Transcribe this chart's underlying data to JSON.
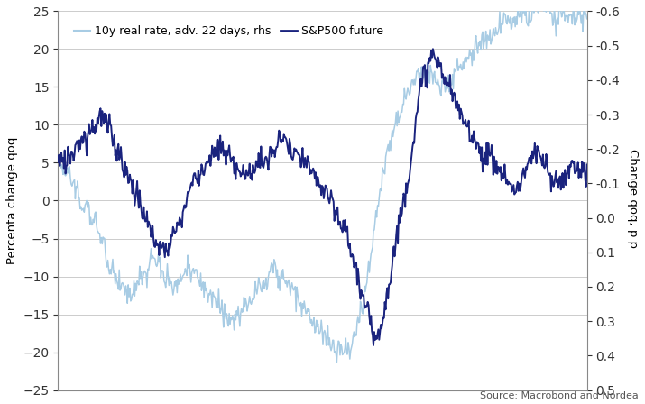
{
  "ylabel_left": "Percenta change qoq",
  "ylabel_right": "Change qoq, p.p.",
  "source": "Source: Macrobond and Nordea",
  "legend": [
    "10y real rate, adv. 22 days, rhs",
    "S&P500 future"
  ],
  "ylim_left": [
    -25,
    25
  ],
  "ylim_right": [
    0.5,
    -0.6
  ],
  "color_light": "#a8cce4",
  "color_dark": "#1a237e",
  "background": "#ffffff",
  "grid_color": "#cccccc",
  "n_points": 650,
  "sp500_waypoints": [
    5,
    5,
    6,
    7,
    8,
    9,
    10,
    11,
    10,
    9,
    7,
    5,
    3,
    1,
    -1,
    -3,
    -5,
    -6,
    -7,
    -4,
    -2,
    0,
    2,
    3,
    4,
    5,
    6,
    7,
    7,
    6,
    5,
    4,
    3,
    4,
    5,
    5,
    6,
    7,
    8,
    7,
    6,
    5,
    4,
    3,
    2,
    1,
    0,
    -1,
    -3,
    -5,
    -8,
    -11,
    -14,
    -17,
    -16,
    -14,
    -10,
    -5,
    0,
    5,
    10,
    15,
    18,
    20,
    19,
    17,
    15,
    13,
    11,
    10,
    9,
    8,
    7,
    6,
    5,
    4,
    3,
    2,
    3,
    4,
    5,
    4,
    3,
    2,
    1,
    2,
    3,
    4,
    4,
    3
  ],
  "real_rate_waypoints": [
    5,
    4,
    3,
    1,
    0,
    -1,
    -3,
    -5,
    -7,
    -9,
    -10,
    -11,
    -12,
    -11,
    -10,
    -9,
    -8,
    -9,
    -10,
    -11,
    -11,
    -10,
    -9,
    -10,
    -11,
    -12,
    -13,
    -14,
    -15,
    -16,
    -15,
    -14,
    -13,
    -12,
    -11,
    -10,
    -9,
    -10,
    -11,
    -12,
    -13,
    -14,
    -15,
    -16,
    -17,
    -18,
    -19,
    -20,
    -20,
    -19,
    -17,
    -14,
    -10,
    -5,
    0,
    5,
    8,
    11,
    13,
    15,
    16,
    17,
    18,
    17,
    16,
    15,
    16,
    17,
    18,
    19,
    20,
    21,
    22,
    23,
    23,
    24,
    24,
    24,
    24,
    24,
    25,
    25,
    25,
    25,
    25,
    25,
    25,
    25,
    25,
    25
  ]
}
